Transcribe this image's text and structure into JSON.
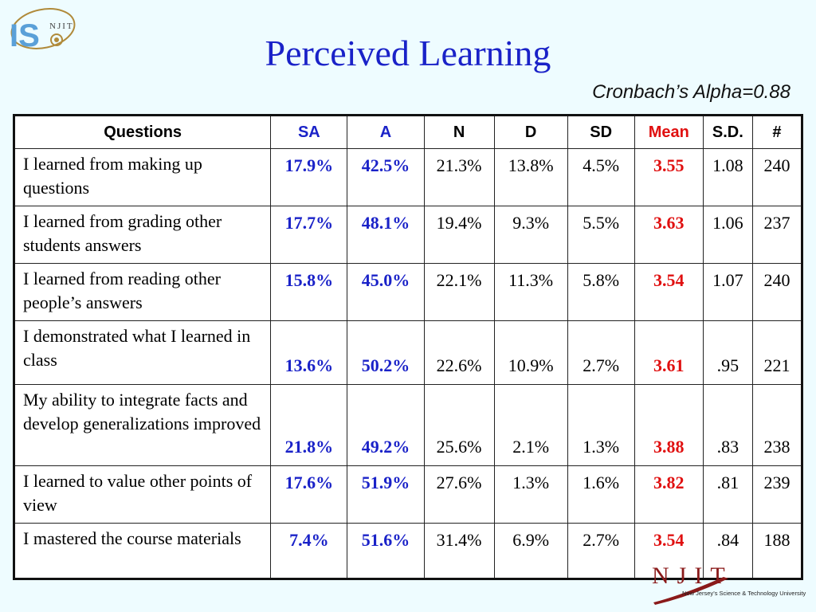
{
  "logo_top": {
    "letters": "IS",
    "sub": "NJIT"
  },
  "title": "Perceived Learning",
  "subtitle": "Cronbach’s Alpha=0.88",
  "table": {
    "headers": {
      "questions": "Questions",
      "sa": "SA",
      "a": "A",
      "n": "N",
      "d": "D",
      "sd": "SD",
      "mean": "Mean",
      "std": "S.D.",
      "count": "#"
    },
    "rows": [
      {
        "question": "I learned from making up questions",
        "sa": "17.9%",
        "a": "42.5%",
        "n": "21.3%",
        "d": "13.8%",
        "sd": "4.5%",
        "mean": "3.55",
        "std": "1.08",
        "count": "240"
      },
      {
        "question": "I learned from grading other students answers",
        "sa": "17.7%",
        "a": "48.1%",
        "n": "19.4%",
        "d": "9.3%",
        "sd": "5.5%",
        "mean": "3.63",
        "std": "1.06",
        "count": "237"
      },
      {
        "question": "I learned from reading other people’s answers",
        "sa": "15.8%",
        "a": "45.0%",
        "n": "22.1%",
        "d": "11.3%",
        "sd": "5.8%",
        "mean": "3.54",
        "std": "1.07",
        "count": "240"
      },
      {
        "question": "I demonstrated what I learned in class",
        "sa": "13.6%",
        "a": "50.2%",
        "n": "22.6%",
        "d": "10.9%",
        "sd": "2.7%",
        "mean": "3.61",
        "std": ".95",
        "count": "221"
      },
      {
        "question": "My ability to integrate facts and develop generalizations improved",
        "sa": "21.8%",
        "a": "49.2%",
        "n": "25.6%",
        "d": "2.1%",
        "sd": "1.3%",
        "mean": "3.88",
        "std": ".83",
        "count": "238"
      },
      {
        "question": "I learned to value other points of view",
        "sa": "17.6%",
        "a": "51.9%",
        "n": "27.6%",
        "d": "1.3%",
        "sd": "1.6%",
        "mean": "3.82",
        "std": ".81",
        "count": "239"
      },
      {
        "question": "I mastered the course materials",
        "sa": "7.4%",
        "a": "51.6%",
        "n": "31.4%",
        "d": "6.9%",
        "sd": "2.7%",
        "mean": "3.54",
        "std": ".84",
        "count": "188"
      }
    ]
  },
  "logo_bottom": {
    "word": "NJIT",
    "tagline": "New Jersey’s Science & Technology University"
  },
  "colors": {
    "accent_blue": "#1a22c8",
    "mean_red": "#e01010",
    "background": "#eefcff"
  }
}
